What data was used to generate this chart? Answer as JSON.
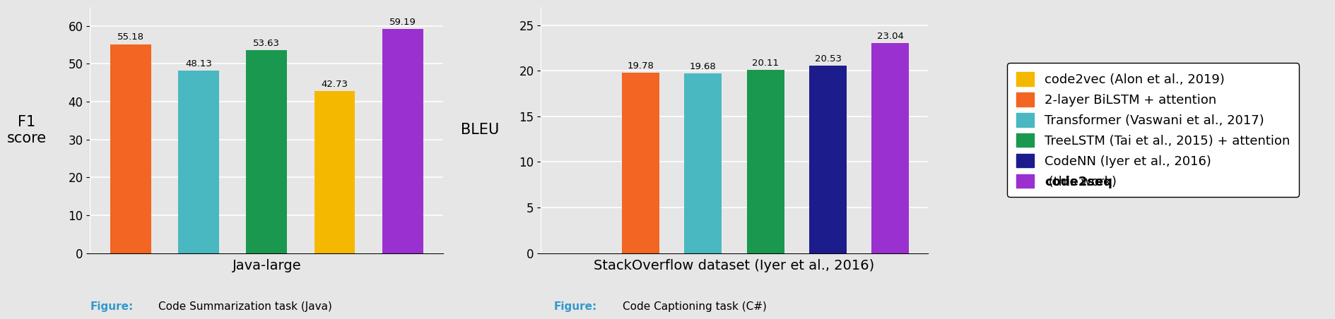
{
  "chart1": {
    "title": "Java-large",
    "ylabel": "F1\nscore",
    "ylim": [
      0,
      65
    ],
    "yticks": [
      0,
      10,
      20,
      30,
      40,
      50,
      60
    ],
    "bars": [
      {
        "value": 55.18,
        "color": "#f26522"
      },
      {
        "value": 48.13,
        "color": "#4ab8c1"
      },
      {
        "value": 53.63,
        "color": "#1a9850"
      },
      {
        "value": 42.73,
        "color": "#f5b800"
      },
      {
        "value": 59.19,
        "color": "#9b30d0"
      }
    ]
  },
  "chart2": {
    "title": "StackOverflow dataset (Iyer et al., 2016)",
    "ylabel": "BLEU",
    "ylim": [
      0,
      27
    ],
    "yticks": [
      0,
      5,
      10,
      15,
      20,
      25
    ],
    "bars": [
      {
        "value": 0.0,
        "color": "#f5b800"
      },
      {
        "value": 19.78,
        "color": "#f26522"
      },
      {
        "value": 19.68,
        "color": "#4ab8c1"
      },
      {
        "value": 20.11,
        "color": "#1a9850"
      },
      {
        "value": 20.53,
        "color": "#1c1c8c"
      },
      {
        "value": 23.04,
        "color": "#9b30d0"
      }
    ],
    "bar_labels": [
      "",
      "19.78",
      "19.68",
      "20.11",
      "20.53",
      "23.04"
    ]
  },
  "legend_entries": [
    {
      "label": "code2vec (Alon et al., 2019)",
      "color": "#f5b800",
      "bold": false
    },
    {
      "label": "2-layer BiLSTM + attention",
      "color": "#f26522",
      "bold": false
    },
    {
      "label": "Transformer (Vaswani et al., 2017)",
      "color": "#4ab8c1",
      "bold": false
    },
    {
      "label": "TreeLSTM (Tai et al., 2015) + attention",
      "color": "#1a9850",
      "bold": false
    },
    {
      "label": "CodeNN (Iyer et al., 2016)",
      "color": "#1c1c8c",
      "bold": false
    },
    {
      "label_bold": "code2seq",
      "label_normal": " (this work)",
      "color": "#9b30d0",
      "bold": true
    }
  ],
  "caption1": "Code Summarization task (Java)",
  "caption2": "Code Captioning task (C#)",
  "figure_label_color": "#3399cc",
  "bg_color": "#e6e6e6",
  "bar_width": 0.6,
  "label_fontsize": 9.5,
  "axis_label_fontsize": 15,
  "tick_fontsize": 12,
  "title_fontsize": 14,
  "legend_fontsize": 13
}
